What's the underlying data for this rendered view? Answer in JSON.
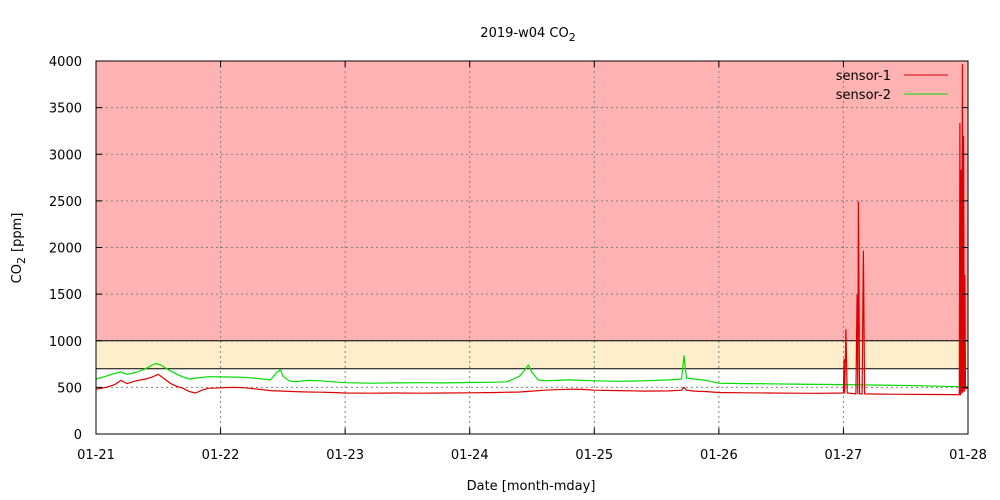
{
  "chart_data": {
    "type": "line",
    "title": "2019-w04 CO",
    "title_sub": "2",
    "xlabel": "Date [month-mday]",
    "ylabel": "CO",
    "ylabel_sub": "2",
    "ylabel_unit": "[ppm]",
    "xlim": [
      0,
      7
    ],
    "ylim": [
      0,
      4000
    ],
    "x_ticks": [
      0,
      1,
      2,
      3,
      4,
      5,
      6,
      7
    ],
    "x_tick_labels": [
      "01-21",
      "01-22",
      "01-23",
      "01-24",
      "01-25",
      "01-26",
      "01-27",
      "01-28"
    ],
    "y_ticks": [
      0,
      500,
      1000,
      1500,
      2000,
      2500,
      3000,
      3500,
      4000
    ],
    "grid": true,
    "legend_position": "top-right",
    "bands": [
      {
        "from": 1000,
        "to": 4000,
        "color": "#ffb2b2"
      },
      {
        "from": 700,
        "to": 1000,
        "color": "#ffeecc"
      }
    ],
    "threshold_lines": [
      {
        "y": 1000,
        "color": "#000000"
      },
      {
        "y": 700,
        "color": "#000000"
      }
    ],
    "series": [
      {
        "name": "sensor-1",
        "color": "#dd0000",
        "points": [
          [
            0.0,
            480
          ],
          [
            0.08,
            500
          ],
          [
            0.15,
            530
          ],
          [
            0.2,
            575
          ],
          [
            0.25,
            540
          ],
          [
            0.32,
            570
          ],
          [
            0.4,
            590
          ],
          [
            0.45,
            610
          ],
          [
            0.5,
            640
          ],
          [
            0.55,
            590
          ],
          [
            0.6,
            540
          ],
          [
            0.65,
            510
          ],
          [
            0.7,
            490
          ],
          [
            0.75,
            455
          ],
          [
            0.8,
            440
          ],
          [
            0.85,
            470
          ],
          [
            0.9,
            490
          ],
          [
            1.0,
            495
          ],
          [
            1.1,
            500
          ],
          [
            1.2,
            495
          ],
          [
            1.3,
            480
          ],
          [
            1.4,
            465
          ],
          [
            1.5,
            460
          ],
          [
            1.6,
            455
          ],
          [
            1.7,
            450
          ],
          [
            1.8,
            448
          ],
          [
            1.9,
            445
          ],
          [
            2.0,
            440
          ],
          [
            2.2,
            438
          ],
          [
            2.4,
            440
          ],
          [
            2.6,
            438
          ],
          [
            2.8,
            440
          ],
          [
            3.0,
            442
          ],
          [
            3.2,
            445
          ],
          [
            3.4,
            450
          ],
          [
            3.5,
            460
          ],
          [
            3.6,
            470
          ],
          [
            3.7,
            475
          ],
          [
            3.8,
            480
          ],
          [
            3.9,
            478
          ],
          [
            4.0,
            470
          ],
          [
            4.2,
            465
          ],
          [
            4.4,
            460
          ],
          [
            4.6,
            462
          ],
          [
            4.7,
            470
          ],
          [
            4.72,
            500
          ],
          [
            4.74,
            470
          ],
          [
            4.8,
            460
          ],
          [
            4.9,
            455
          ],
          [
            5.0,
            445
          ],
          [
            5.2,
            442
          ],
          [
            5.4,
            440
          ],
          [
            5.6,
            438
          ],
          [
            5.8,
            436
          ],
          [
            6.0,
            440
          ],
          [
            6.005,
            800
          ],
          [
            6.01,
            440
          ],
          [
            6.02,
            1120
          ],
          [
            6.03,
            440
          ],
          [
            6.1,
            430
          ],
          [
            6.11,
            1490
          ],
          [
            6.115,
            430
          ],
          [
            6.12,
            2490
          ],
          [
            6.13,
            430
          ],
          [
            6.15,
            430
          ],
          [
            6.16,
            1960
          ],
          [
            6.17,
            430
          ],
          [
            6.3,
            428
          ],
          [
            6.5,
            426
          ],
          [
            6.7,
            424
          ],
          [
            6.9,
            422
          ],
          [
            6.93,
            420
          ],
          [
            6.935,
            3330
          ],
          [
            6.94,
            420
          ],
          [
            6.945,
            2830
          ],
          [
            6.95,
            440
          ],
          [
            6.955,
            3960
          ],
          [
            6.96,
            450
          ],
          [
            6.965,
            3190
          ],
          [
            6.97,
            460
          ],
          [
            6.975,
            1700
          ],
          [
            6.98,
            480
          ],
          [
            7.0,
            500
          ]
        ]
      },
      {
        "name": "sensor-2",
        "color": "#00dd00",
        "points": [
          [
            0.0,
            590
          ],
          [
            0.08,
            620
          ],
          [
            0.15,
            650
          ],
          [
            0.2,
            665
          ],
          [
            0.25,
            640
          ],
          [
            0.32,
            660
          ],
          [
            0.4,
            700
          ],
          [
            0.45,
            740
          ],
          [
            0.48,
            755
          ],
          [
            0.52,
            740
          ],
          [
            0.58,
            690
          ],
          [
            0.65,
            640
          ],
          [
            0.7,
            610
          ],
          [
            0.75,
            590
          ],
          [
            0.8,
            600
          ],
          [
            0.9,
            615
          ],
          [
            1.0,
            612
          ],
          [
            1.1,
            610
          ],
          [
            1.2,
            608
          ],
          [
            1.3,
            595
          ],
          [
            1.4,
            580
          ],
          [
            1.42,
            610
          ],
          [
            1.45,
            660
          ],
          [
            1.48,
            690
          ],
          [
            1.5,
            620
          ],
          [
            1.55,
            570
          ],
          [
            1.6,
            560
          ],
          [
            1.7,
            575
          ],
          [
            1.8,
            570
          ],
          [
            1.9,
            560
          ],
          [
            2.0,
            550
          ],
          [
            2.2,
            545
          ],
          [
            2.4,
            548
          ],
          [
            2.6,
            550
          ],
          [
            2.8,
            548
          ],
          [
            3.0,
            552
          ],
          [
            3.2,
            555
          ],
          [
            3.3,
            560
          ],
          [
            3.35,
            590
          ],
          [
            3.4,
            620
          ],
          [
            3.45,
            700
          ],
          [
            3.47,
            740
          ],
          [
            3.5,
            660
          ],
          [
            3.55,
            580
          ],
          [
            3.6,
            570
          ],
          [
            3.7,
            575
          ],
          [
            3.8,
            580
          ],
          [
            3.9,
            575
          ],
          [
            4.0,
            570
          ],
          [
            4.2,
            565
          ],
          [
            4.4,
            570
          ],
          [
            4.6,
            580
          ],
          [
            4.7,
            590
          ],
          [
            4.72,
            840
          ],
          [
            4.74,
            600
          ],
          [
            4.8,
            590
          ],
          [
            4.9,
            575
          ],
          [
            5.0,
            545
          ],
          [
            5.2,
            540
          ],
          [
            5.4,
            538
          ],
          [
            5.6,
            535
          ],
          [
            5.8,
            532
          ],
          [
            6.0,
            530
          ],
          [
            6.2,
            525
          ],
          [
            6.4,
            522
          ],
          [
            6.6,
            518
          ],
          [
            6.8,
            512
          ],
          [
            7.0,
            505
          ]
        ]
      }
    ]
  }
}
